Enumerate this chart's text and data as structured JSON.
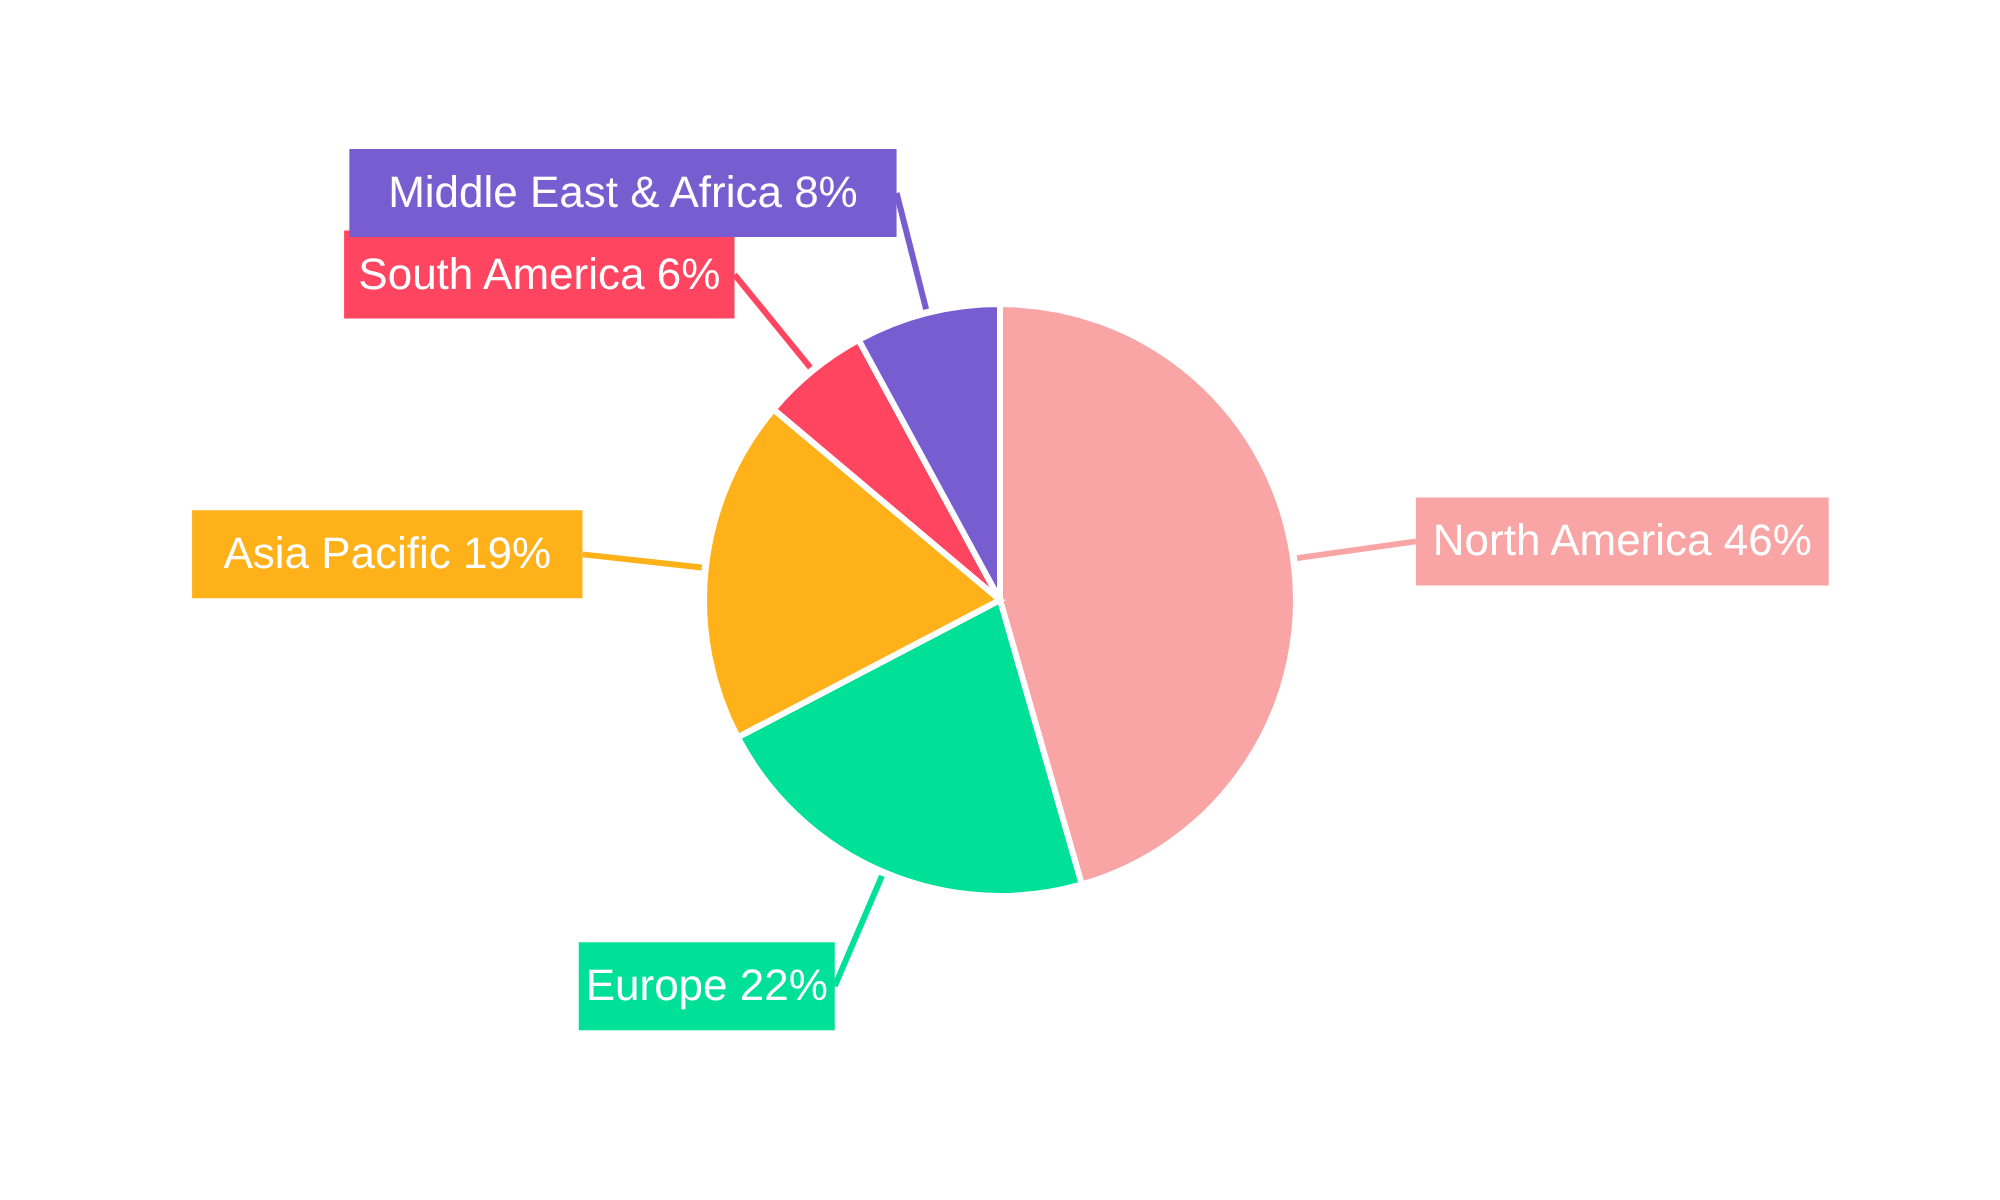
{
  "chart_data": {
    "type": "pie",
    "categories": [
      "North America",
      "Europe",
      "Asia Pacific",
      "South America",
      "Middle East & Africa"
    ],
    "values": [
      46,
      22,
      19,
      6,
      8
    ],
    "value_labels": [
      "46%",
      "22%",
      "19%",
      "6%",
      "8%"
    ],
    "colors": [
      "#f9a5a5",
      "#00e096",
      "#ffb11a",
      "#ff4560",
      "#775dd0"
    ]
  }
}
